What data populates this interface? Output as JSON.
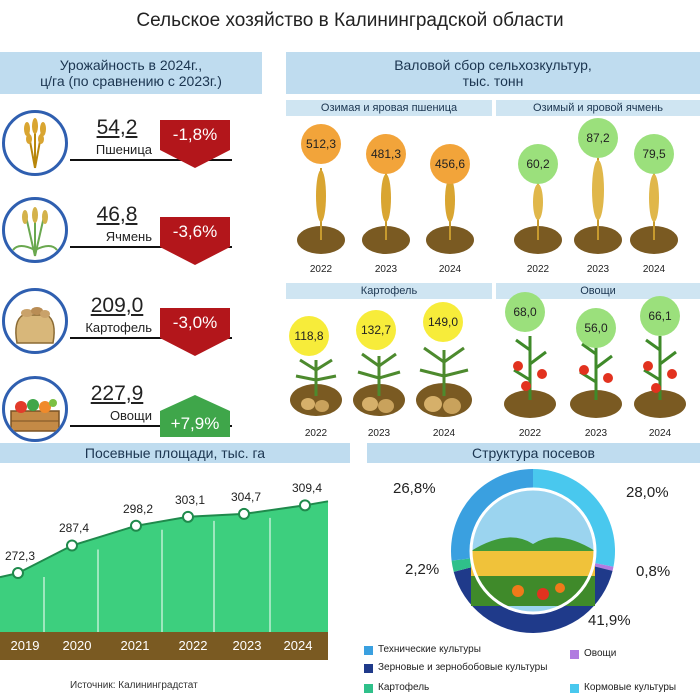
{
  "title": "Сельское хозяйство в Калининградской области",
  "yield": {
    "banner_line1": "Урожайность в 2024г.,",
    "banner_line2": "ц/га (по сравнению с 2023г.)",
    "items": [
      {
        "name": "Пшеница",
        "value": "54,2",
        "change": "-1,8%",
        "icon": "wheat-icon"
      },
      {
        "name": "Ячмень",
        "value": "46,8",
        "change": "-3,6%",
        "icon": "barley-icon"
      },
      {
        "name": "Картофель",
        "value": "209,0",
        "change": "-3,0%",
        "icon": "potato-sack-icon"
      },
      {
        "name": "Овощи",
        "value": "227,9",
        "change": "+7,9%",
        "icon": "vegetable-crate-icon"
      }
    ]
  },
  "gross": {
    "banner_line1": "Валовой сбор сельхозкультур,",
    "banner_line2": "тыс. тонн",
    "groups": [
      {
        "name": "Озимая и яровая пшеница",
        "years": [
          "2022",
          "2023",
          "2024"
        ],
        "values": [
          "512,3",
          "481,3",
          "456,6"
        ],
        "color": "#f2a43a"
      },
      {
        "name": "Озимый и яровой ячмень",
        "years": [
          "2022",
          "2023",
          "2024"
        ],
        "values": [
          "60,2",
          "87,2",
          "79,5"
        ],
        "color": "#9be07c"
      },
      {
        "name": "Картофель",
        "years": [
          "2022",
          "2023",
          "2024"
        ],
        "values": [
          "118,8",
          "132,7",
          "149,0"
        ],
        "color": "#f7ec3a"
      },
      {
        "name": "Овощи",
        "years": [
          "2022",
          "2023",
          "2024"
        ],
        "values": [
          "68,0",
          "56,0",
          "66,1"
        ],
        "color": "#9be07c"
      }
    ]
  },
  "chart_data": [
    {
      "type": "area",
      "title": "Посевные площади, тыс. га",
      "categories": [
        "2019",
        "2020",
        "2021",
        "2022",
        "2023",
        "2024"
      ],
      "values": [
        272.3,
        287.4,
        298.2,
        303.1,
        304.7,
        309.4
      ],
      "labels": [
        "272,3",
        "287,4",
        "298,2",
        "303,1",
        "304,7",
        "309,4"
      ],
      "color": "#3dcf7e"
    },
    {
      "type": "pie",
      "title": "Структура посевов",
      "series": [
        {
          "name": "Технические культуры",
          "value": 26.8,
          "label": "26,8%",
          "color": "#3aa0e0"
        },
        {
          "name": "Зерновые и зернобобовые культуры",
          "value": 41.9,
          "label": "41,9%",
          "color": "#1f3a8a"
        },
        {
          "name": "Картофель",
          "value": 2.2,
          "label": "2,2%",
          "color": "#2fc08a"
        },
        {
          "name": "Овощи",
          "value": 0.8,
          "label": "0,8%",
          "color": "#b07be0"
        },
        {
          "name": "Кормовые культуры",
          "value": 28.0,
          "label": "28,0%",
          "color": "#49c8ee"
        }
      ]
    }
  ],
  "source": "Источник: Калининградстат"
}
